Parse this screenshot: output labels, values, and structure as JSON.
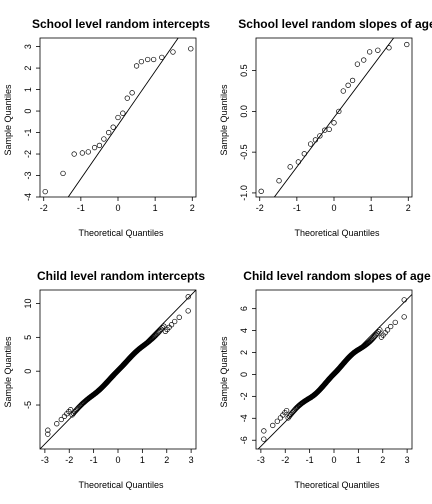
{
  "chart_data": [
    {
      "type": "scatter",
      "title": "School level random intercepts",
      "xlabel": "Theoretical Quantiles",
      "ylabel": "Sample Quantiles",
      "xlim": [
        -2.1,
        2.1
      ],
      "ylim": [
        -4.0,
        3.4
      ],
      "xticks": [
        -2,
        -1,
        0,
        1,
        2
      ],
      "yticks": [
        -4,
        -3,
        -2,
        -1,
        0,
        1,
        2,
        3
      ],
      "grid": false,
      "line": [
        [
          -2.1,
          -5.9
        ],
        [
          2.1,
          4.6
        ]
      ],
      "x": [
        -1.96,
        -1.48,
        -1.18,
        -0.96,
        -0.8,
        -0.63,
        -0.5,
        -0.38,
        -0.25,
        -0.13,
        0.0,
        0.13,
        0.25,
        0.38,
        0.5,
        0.63,
        0.8,
        0.96,
        1.18,
        1.48,
        1.96
      ],
      "y": [
        -3.75,
        -2.9,
        -2.0,
        -1.95,
        -1.9,
        -1.7,
        -1.6,
        -1.3,
        -1.0,
        -0.75,
        -0.3,
        -0.1,
        0.6,
        0.85,
        2.1,
        2.3,
        2.4,
        2.4,
        2.5,
        2.75,
        2.9
      ]
    },
    {
      "type": "scatter",
      "title": "School level random slopes of age",
      "xlabel": "Theoretical Quantiles",
      "ylabel": "Sample Quantiles",
      "xlim": [
        -2.1,
        2.1
      ],
      "ylim": [
        -1.05,
        0.9
      ],
      "xticks": [
        -2,
        -1,
        0,
        1,
        2
      ],
      "yticks": [
        -1.0,
        -0.5,
        0.0,
        0.5
      ],
      "ytick_labels": [
        "-1.0",
        "-0.5",
        "0.0",
        "0.5"
      ],
      "grid": false,
      "line": [
        [
          -2.1,
          -1.35
        ],
        [
          2.1,
          1.2
        ]
      ],
      "x": [
        -1.96,
        -1.48,
        -1.18,
        -0.96,
        -0.8,
        -0.63,
        -0.5,
        -0.38,
        -0.25,
        -0.13,
        0.0,
        0.13,
        0.25,
        0.38,
        0.5,
        0.63,
        0.8,
        0.96,
        1.18,
        1.48,
        1.96
      ],
      "y": [
        -0.98,
        -0.85,
        -0.68,
        -0.62,
        -0.52,
        -0.4,
        -0.35,
        -0.3,
        -0.23,
        -0.22,
        -0.14,
        0.0,
        0.25,
        0.32,
        0.38,
        0.58,
        0.63,
        0.73,
        0.75,
        0.78,
        0.82
      ]
    },
    {
      "type": "scatter",
      "title": "Child level random intercepts",
      "xlabel": "Theoretical Quantiles",
      "ylabel": "Sample Quantiles",
      "xlim": [
        -3.2,
        3.2
      ],
      "ylim": [
        -11.5,
        12.0
      ],
      "xticks": [
        -3,
        -2,
        -1,
        0,
        1,
        2,
        3
      ],
      "yticks": [
        -5,
        0,
        5,
        10
      ],
      "grid": false,
      "line": [
        [
          -3.2,
          -11.5
        ],
        [
          3.2,
          12.0
        ]
      ],
      "dist": {
        "n": 250,
        "slope": 3.55,
        "intercept": 0.1,
        "tail_scale": 0.85
      },
      "extremes": [
        [
          -2.88,
          -9.3
        ],
        [
          2.88,
          11.0
        ]
      ]
    },
    {
      "type": "scatter",
      "title": "Child level random slopes of age",
      "xlabel": "Theoretical Quantiles",
      "ylabel": "Sample Quantiles",
      "xlim": [
        -3.2,
        3.2
      ],
      "ylim": [
        -6.8,
        7.7
      ],
      "xticks": [
        -3,
        -2,
        -1,
        0,
        1,
        2,
        3
      ],
      "yticks": [
        -6,
        -4,
        -2,
        0,
        2,
        4,
        6
      ],
      "grid": false,
      "line": [
        [
          -3.2,
          -7.0
        ],
        [
          3.2,
          7.3
        ]
      ],
      "dist": {
        "n": 250,
        "slope": 2.2,
        "intercept": 0.05,
        "tail_scale": 0.8
      },
      "extremes": [
        [
          -2.88,
          -5.9
        ],
        [
          2.88,
          6.8
        ]
      ]
    }
  ]
}
